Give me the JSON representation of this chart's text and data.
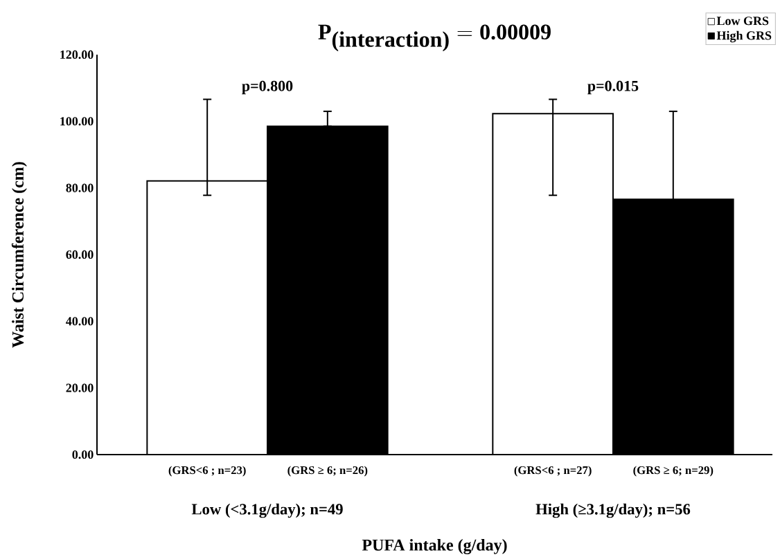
{
  "chart_data": {
    "type": "bar",
    "title": "\\textbf{P}_{\\textbf{(interaction)}} = \\textbf{0.00009}",
    "xlabel": "PUFA intake (g/day)",
    "ylabel": "Waist Circumference (cm)",
    "categories": [
      "Low (<3.1g/day); n=49",
      "High (≥3.1g/day); n=56"
    ],
    "series": [
      {
        "name": "Low GRS",
        "color": "#ffffff",
        "values": [
          82.1,
          102.3
        ],
        "errors": [
          [
            77.8,
            106.6
          ],
          [
            77.8,
            106.6
          ]
        ]
      },
      {
        "name": "High GRS",
        "color": "#000000",
        "values": [
          98.5,
          76.6
        ],
        "errors": [
          [
            98.5,
            103.0
          ],
          [
            76.6,
            103.0
          ]
        ]
      }
    ],
    "ylim": [
      0,
      120
    ],
    "yticks": [
      {
        "value": 0,
        "label": "0.00"
      },
      {
        "value": 20,
        "label": "20.00"
      },
      {
        "value": 40,
        "label": "40.00"
      },
      {
        "value": 60,
        "label": "60.00"
      },
      {
        "value": 80,
        "label": "80.00"
      },
      {
        "value": 100,
        "label": "100.00"
      },
      {
        "value": 120,
        "label": "120.00"
      }
    ],
    "legend": "top right",
    "annotations": [
      "p=0.800",
      "p=0.015",
      "(GRS<6 ; n=23)",
      "(GRS ≥ 6; n=26)",
      "(GRS<6 ; n=27)",
      "(GRS ≥ 6; n=29)"
    ]
  }
}
